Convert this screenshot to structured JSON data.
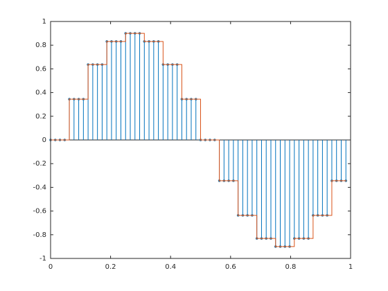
{
  "chart_data": {
    "type": "stem",
    "x": [
      0,
      0.015625,
      0.03125,
      0.046875,
      0.0625,
      0.078125,
      0.09375,
      0.109375,
      0.125,
      0.140625,
      0.15625,
      0.171875,
      0.1875,
      0.203125,
      0.21875,
      0.234375,
      0.25,
      0.265625,
      0.28125,
      0.296875,
      0.3125,
      0.328125,
      0.34375,
      0.359375,
      0.375,
      0.390625,
      0.40625,
      0.421875,
      0.4375,
      0.453125,
      0.46875,
      0.484375,
      0.5,
      0.515625,
      0.53125,
      0.546875,
      0.5625,
      0.578125,
      0.59375,
      0.609375,
      0.625,
      0.640625,
      0.65625,
      0.671875,
      0.6875,
      0.703125,
      0.71875,
      0.734375,
      0.75,
      0.765625,
      0.78125,
      0.796875,
      0.8125,
      0.828125,
      0.84375,
      0.859375,
      0.875,
      0.890625,
      0.90625,
      0.921875,
      0.9375,
      0.953125,
      0.96875,
      0.984375
    ],
    "values": [
      0,
      0,
      0,
      0,
      0.3444,
      0.3444,
      0.3444,
      0.3444,
      0.6364,
      0.6364,
      0.6364,
      0.6364,
      0.8315,
      0.8315,
      0.8315,
      0.8315,
      0.9,
      0.9,
      0.9,
      0.9,
      0.8315,
      0.8315,
      0.8315,
      0.8315,
      0.6364,
      0.6364,
      0.6364,
      0.6364,
      0.3444,
      0.3444,
      0.3444,
      0.3444,
      0,
      0,
      0,
      0,
      -0.3444,
      -0.3444,
      -0.3444,
      -0.3444,
      -0.6364,
      -0.6364,
      -0.6364,
      -0.6364,
      -0.8315,
      -0.8315,
      -0.8315,
      -0.8315,
      -0.9,
      -0.9,
      -0.9,
      -0.9,
      -0.8315,
      -0.8315,
      -0.8315,
      -0.8315,
      -0.6364,
      -0.6364,
      -0.6364,
      -0.6364,
      -0.3444,
      -0.3444,
      -0.3444,
      -0.3444
    ],
    "color": "#0072bd",
    "stairs_color": "#d95319",
    "xlim": [
      0,
      1
    ],
    "xticks": [
      0,
      0.2,
      0.4,
      0.6,
      0.8,
      1
    ],
    "ylim": [
      -1,
      1
    ],
    "yticks": [
      -1,
      -0.8,
      -0.6,
      -0.4,
      -0.2,
      0,
      0.2,
      0.4,
      0.6,
      0.8,
      1
    ]
  }
}
